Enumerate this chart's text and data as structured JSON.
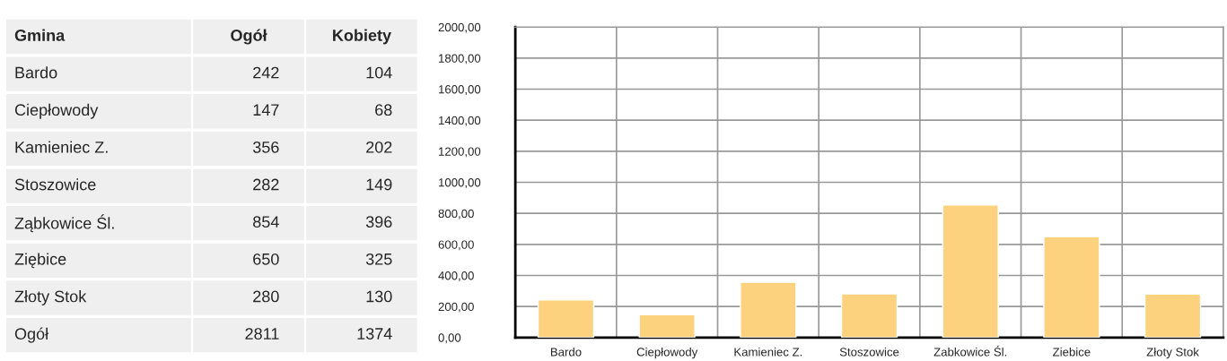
{
  "chart_data": [
    {
      "type": "other",
      "ylabel": "Gmina",
      "categories": [
        "Bardo",
        "Ciepłowody",
        "Kamieniec Z.",
        "Stoszowice",
        "Ząbkowice Śl.",
        "Ziębice",
        "Złoty Stok",
        "Ogół"
      ],
      "series": [
        {
          "name": "Ogół",
          "values": [
            242,
            147,
            356,
            282,
            854,
            650,
            280,
            2811
          ]
        },
        {
          "name": "Kobiety",
          "values": [
            104,
            68,
            202,
            149,
            396,
            325,
            130,
            1374
          ]
        }
      ],
      "data_labels": true
    },
    {
      "type": "bar",
      "categories": [
        "Bardo",
        "Ciepłowody",
        "Kamieniec Z.",
        "Stoszowice",
        "Zabkowice Śl.",
        "Ziebice",
        "Złoty Stok"
      ],
      "values": [
        242,
        147,
        356,
        282,
        854,
        650,
        280
      ],
      "color": "#fcd27f",
      "ylim": [
        0,
        2000
      ],
      "yticks": [
        {
          "value": 0,
          "label": "0,00"
        },
        {
          "value": 200,
          "label": "200,00"
        },
        {
          "value": 400,
          "label": "400,00"
        },
        {
          "value": 600,
          "label": "600,00"
        },
        {
          "value": 800,
          "label": "800,00"
        },
        {
          "value": 1000,
          "label": "1000,00"
        },
        {
          "value": 1200,
          "label": "1200,00"
        },
        {
          "value": 1400,
          "label": "1400,00"
        },
        {
          "value": 1600,
          "label": "1600,00"
        },
        {
          "value": 1800,
          "label": "1800,00"
        },
        {
          "value": 2000,
          "label": "2000,00"
        }
      ],
      "grid": true
    }
  ]
}
